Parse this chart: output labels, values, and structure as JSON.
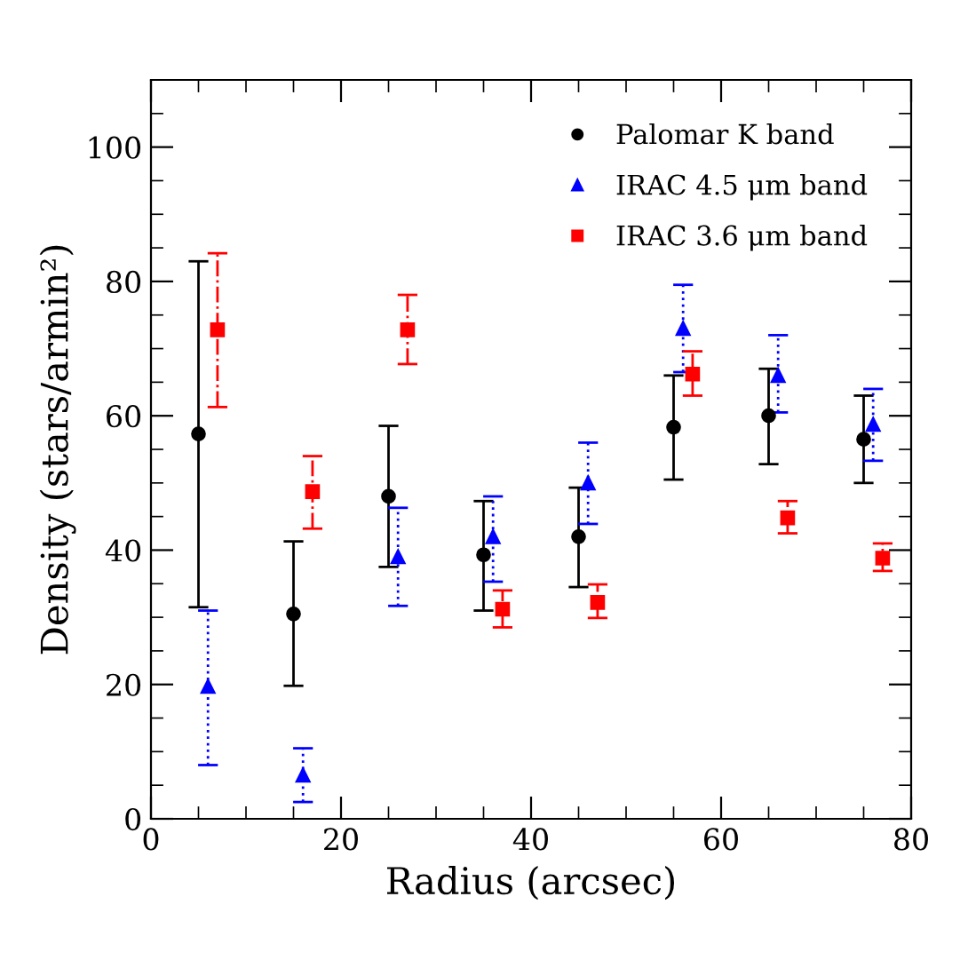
{
  "chart_data": {
    "type": "scatter",
    "xlabel": "Radius (arcsec)",
    "ylabel": "Density (stars/armin²)",
    "xlim": [
      0,
      80
    ],
    "xticks": [
      0,
      20,
      40,
      60,
      80
    ],
    "ylim": [
      0,
      110
    ],
    "yticks": [
      0,
      20,
      40,
      60,
      80,
      100
    ],
    "grid": false,
    "legend": "top right",
    "series": [
      {
        "name": "Palomar K band",
        "color": "#000000",
        "marker": "circle",
        "line_style": "solid",
        "x": [
          5,
          15,
          25,
          35,
          45,
          55,
          65,
          75
        ],
        "values": [
          57.3,
          30.5,
          48,
          39.3,
          42,
          58.3,
          60,
          56.5
        ],
        "errors": [
          [
            31.5,
            83
          ],
          [
            19.8,
            41.3
          ],
          [
            37.5,
            58.5
          ],
          [
            31,
            47.3
          ],
          [
            34.5,
            49.3
          ],
          [
            50.5,
            66
          ],
          [
            52.8,
            67
          ],
          [
            50,
            63
          ]
        ]
      },
      {
        "name": "IRAC 4.5 μm band",
        "color": "#0000ff",
        "marker": "triangle",
        "line_style": "dotted",
        "x": [
          6,
          16,
          26,
          36,
          46,
          56,
          66,
          76
        ],
        "values": [
          19.7,
          6.5,
          39,
          42,
          50,
          73,
          66,
          58.7
        ],
        "errors": [
          [
            8,
            31
          ],
          [
            2.5,
            10.5
          ],
          [
            31.7,
            46.3
          ],
          [
            35.3,
            48
          ],
          [
            43.9,
            56
          ],
          [
            66.5,
            79.5
          ],
          [
            60.5,
            72
          ],
          [
            53.3,
            64
          ]
        ]
      },
      {
        "name": "IRAC 3.6 μm band",
        "color": "#ff0000",
        "marker": "square",
        "line_style": "dashdot",
        "x": [
          7,
          17,
          27,
          37,
          47,
          57,
          67,
          77
        ],
        "values": [
          72.8,
          48.7,
          72.8,
          31.2,
          32.2,
          66.2,
          44.8,
          38.8
        ],
        "errors": [
          [
            61.3,
            84.2
          ],
          [
            43.2,
            54
          ],
          [
            67.7,
            78
          ],
          [
            28.5,
            34
          ],
          [
            29.9,
            34.9
          ],
          [
            63,
            69.6
          ],
          [
            42.5,
            47.3
          ],
          [
            36.9,
            41
          ]
        ]
      }
    ]
  }
}
